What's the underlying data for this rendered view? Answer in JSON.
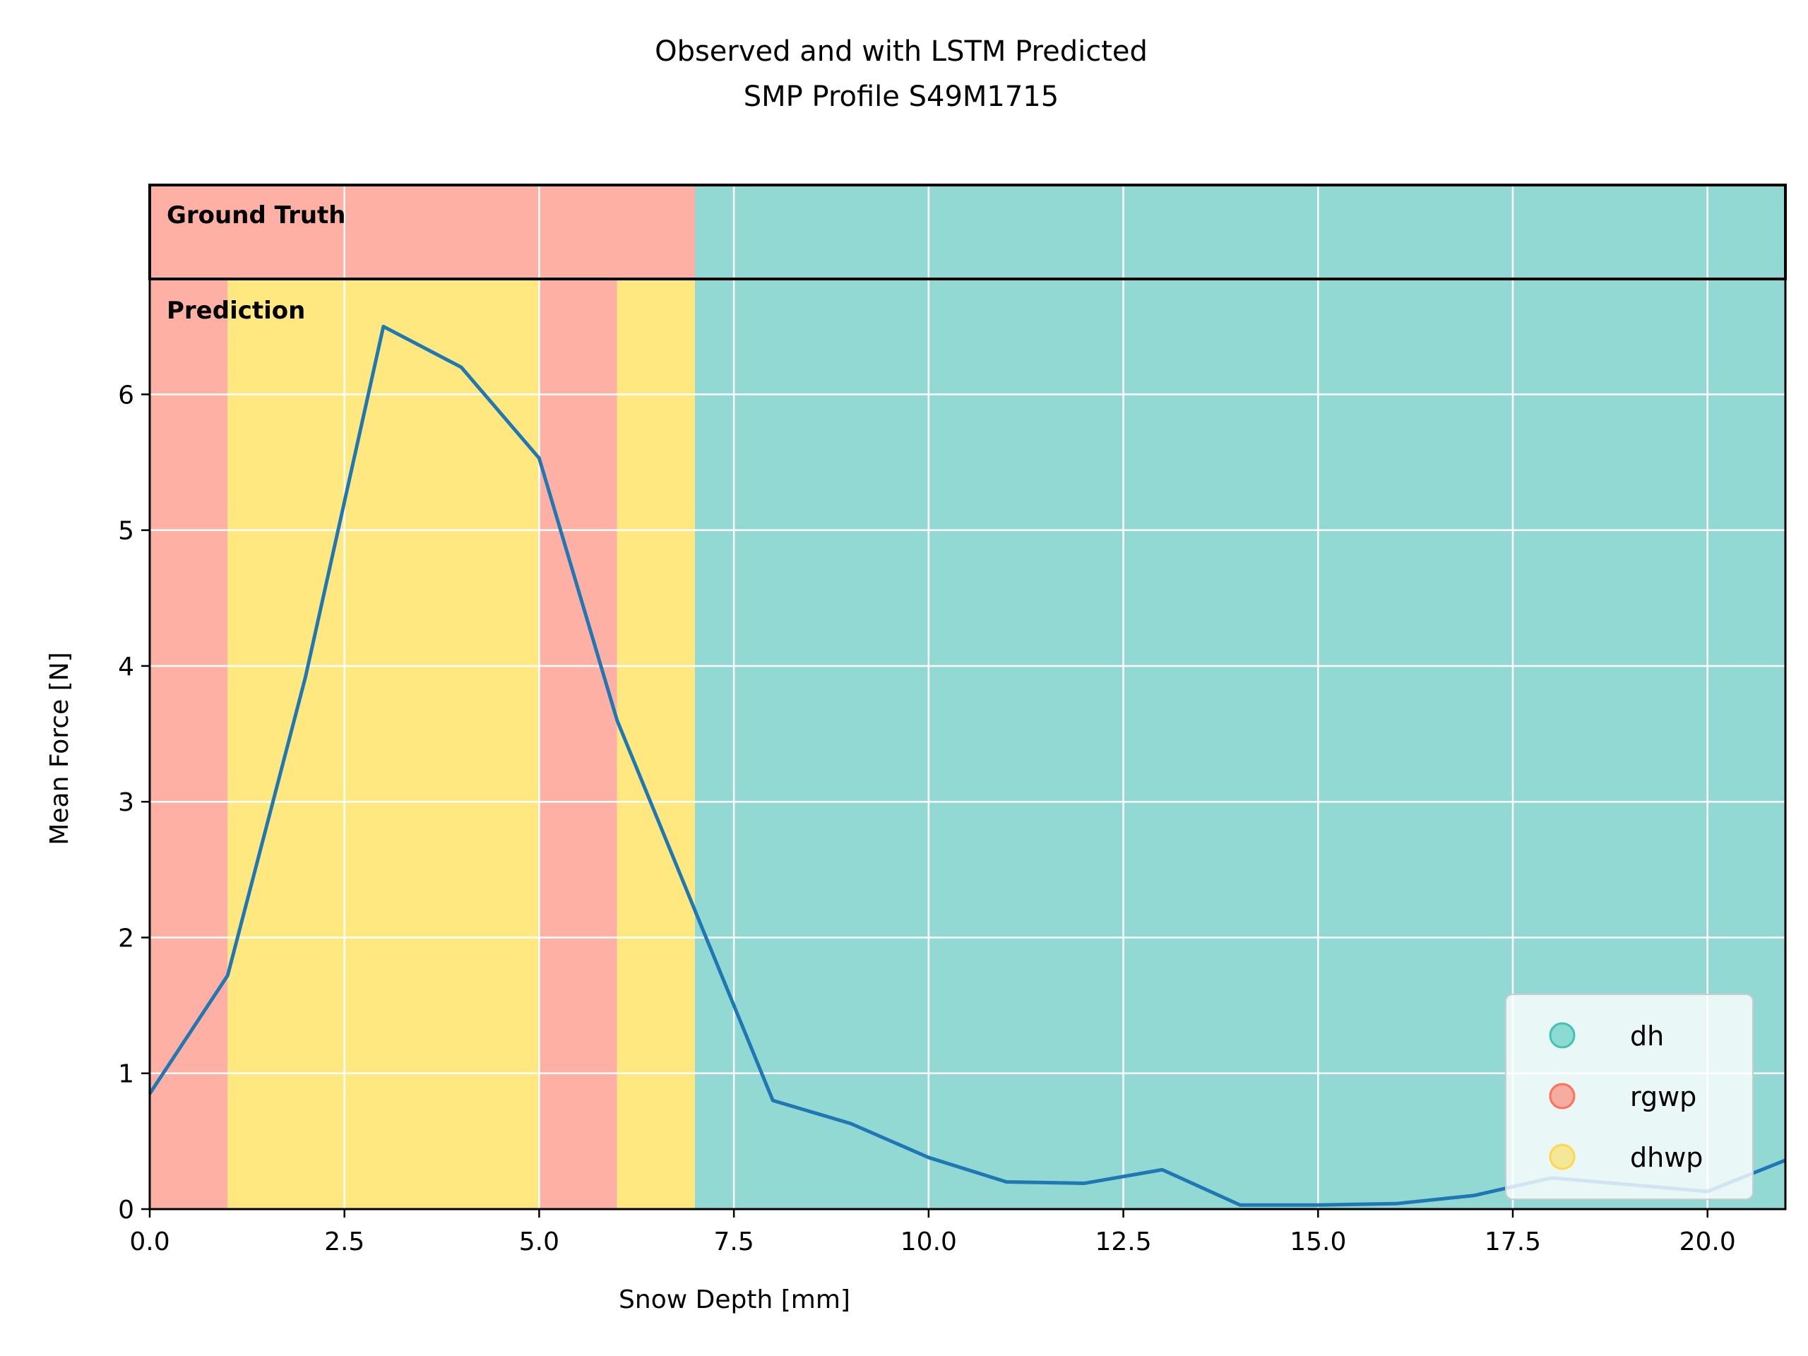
{
  "chart_data": {
    "type": "line",
    "title": [
      "Observed and with LSTM Predicted",
      "SMP Profile S49M1715"
    ],
    "xlabel": "Snow Depth [mm]",
    "ylabel": "Mean Force [N]",
    "xlim": [
      0,
      21
    ],
    "ylim": [
      0,
      6.85
    ],
    "strip_ylim": [
      6.85,
      7.55
    ],
    "grid": true,
    "xticks": [
      0,
      2.5,
      5,
      7.5,
      10,
      12.5,
      15,
      17.5,
      20
    ],
    "xtick_labels": [
      "0.0",
      "2.5",
      "5.0",
      "7.5",
      "10.0",
      "12.5",
      "15.0",
      "17.5",
      "20.0"
    ],
    "yticks": [
      0,
      1,
      2,
      3,
      4,
      5,
      6
    ],
    "ytick_labels": [
      "0",
      "1",
      "2",
      "3",
      "4",
      "5",
      "6"
    ],
    "series": [
      {
        "color": "#1f77b4",
        "x": [
          0,
          1,
          2,
          3,
          4,
          5,
          6,
          7,
          8,
          9,
          10,
          11,
          12,
          13,
          14,
          15,
          16,
          17,
          18,
          19,
          20,
          21
        ],
        "y": [
          0.85,
          1.72,
          3.92,
          6.5,
          6.2,
          5.53,
          3.6,
          2.2,
          0.8,
          0.63,
          0.38,
          0.2,
          0.19,
          0.29,
          0.03,
          0.03,
          0.04,
          0.1,
          0.23,
          0.18,
          0.13,
          0.36
        ]
      }
    ],
    "ground_truth_label": "Ground Truth",
    "prediction_label": "Prediction",
    "ground_truth_segments": [
      {
        "start": 0,
        "end": 7,
        "class": "rgwp"
      },
      {
        "start": 7,
        "end": 21,
        "class": "dh"
      }
    ],
    "prediction_segments": [
      {
        "start": 0,
        "end": 1,
        "class": "rgwp"
      },
      {
        "start": 1,
        "end": 5,
        "class": "dhwp"
      },
      {
        "start": 5,
        "end": 6,
        "class": "rgwp"
      },
      {
        "start": 6,
        "end": 7,
        "class": "dhwp"
      },
      {
        "start": 7,
        "end": 21,
        "class": "dh"
      }
    ],
    "legend": {
      "location": "lower-right",
      "entries": [
        {
          "label": "dh",
          "color": "#40c2b4"
        },
        {
          "label": "rgwp",
          "color": "#ff6f5a"
        },
        {
          "label": "dhwp",
          "color": "#ffd84a"
        }
      ]
    },
    "class_colors": {
      "dh": "#92d9d4",
      "rgwp": "#ffb0a5",
      "dhwp": "#ffe880"
    }
  }
}
